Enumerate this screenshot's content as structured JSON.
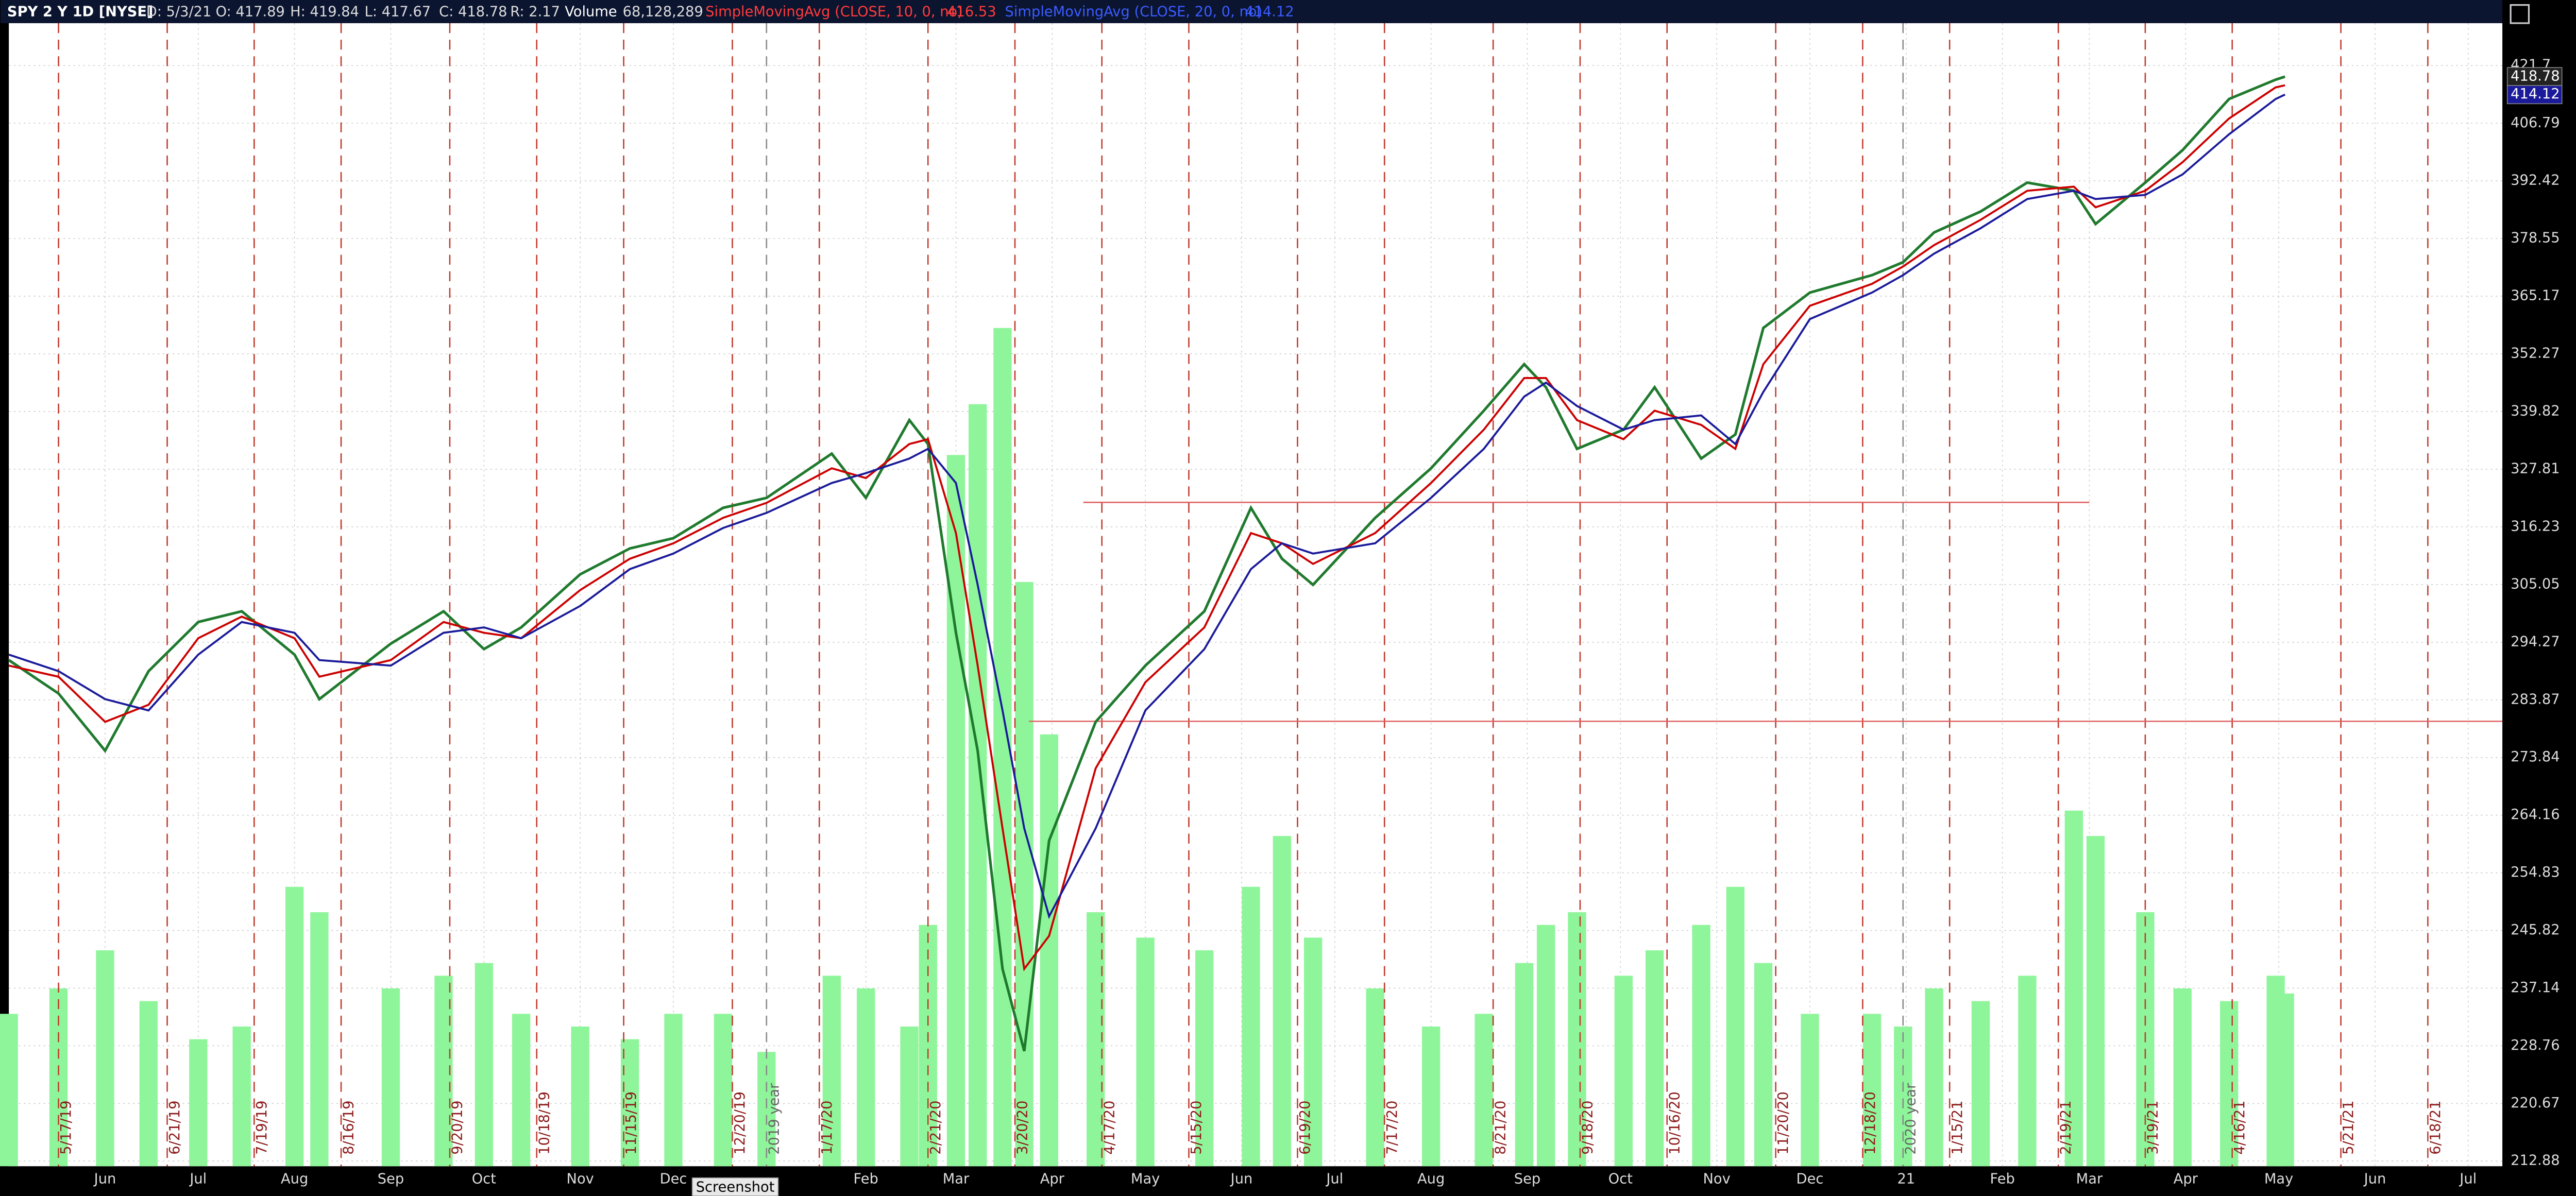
{
  "header": {
    "symbol": "SPY 2 Y 1D [NYSE]",
    "fields": [
      "D: 5/3/21",
      "O: 417.89",
      "H: 419.84",
      "L: 417.67",
      "C: 418.78",
      "R: 2.17"
    ],
    "volume_label": "Volume",
    "volume": "68,128,289"
  },
  "tooltip": "Screenshot",
  "chart_data": {
    "type": "line",
    "ylog": true,
    "grid": true,
    "xlim": [
      0,
      803
    ],
    "ylim": [
      212.2,
      433
    ],
    "yticks": [
      421.7,
      406.79,
      392.42,
      378.55,
      365.17,
      352.27,
      339.82,
      327.81,
      316.23,
      305.05,
      294.27,
      283.87,
      273.84,
      264.16,
      254.83,
      245.82,
      237.14,
      228.76,
      220.67,
      212.88
    ],
    "xticks": [
      {
        "value": 31,
        "label": "Jun"
      },
      {
        "value": 61,
        "label": "Jul"
      },
      {
        "value": 92,
        "label": "Aug"
      },
      {
        "value": 123,
        "label": "Sep"
      },
      {
        "value": 153,
        "label": "Oct"
      },
      {
        "value": 184,
        "label": "Nov"
      },
      {
        "value": 214,
        "label": "Dec"
      },
      {
        "value": 276,
        "label": "Feb"
      },
      {
        "value": 305,
        "label": "Mar"
      },
      {
        "value": 336,
        "label": "Apr"
      },
      {
        "value": 366,
        "label": "May"
      },
      {
        "value": 397,
        "label": "Jun"
      },
      {
        "value": 427,
        "label": "Jul"
      },
      {
        "value": 458,
        "label": "Aug"
      },
      {
        "value": 489,
        "label": "Sep"
      },
      {
        "value": 519,
        "label": "Oct"
      },
      {
        "value": 550,
        "label": "Nov"
      },
      {
        "value": 580,
        "label": "Dec"
      },
      {
        "value": 611,
        "label": "21"
      },
      {
        "value": 642,
        "label": "Feb"
      },
      {
        "value": 670,
        "label": "Mar"
      },
      {
        "value": 701,
        "label": "Apr"
      },
      {
        "value": 731,
        "label": "May"
      },
      {
        "value": 762,
        "label": "Jun"
      },
      {
        "value": 792,
        "label": "Jul"
      }
    ],
    "x": [
      0,
      16,
      31,
      45,
      61,
      75,
      92,
      100,
      123,
      140,
      153,
      165,
      184,
      200,
      214,
      230,
      244,
      265,
      276,
      290,
      296,
      305,
      312,
      320,
      327,
      335,
      350,
      366,
      385,
      400,
      410,
      420,
      440,
      458,
      475,
      488,
      495,
      505,
      520,
      530,
      545,
      556,
      565,
      580,
      600,
      610,
      620,
      635,
      650,
      665,
      672,
      688,
      700,
      715,
      730,
      733
    ],
    "series": [
      {
        "color": "#1f7a2e",
        "values": [
          291,
          285,
          275,
          289,
          298,
          300,
          292,
          284,
          294,
          300,
          293,
          297,
          307,
          312,
          314,
          320,
          322,
          331,
          322,
          338,
          333,
          296,
          275,
          240,
          228,
          260,
          280,
          290,
          300,
          320,
          310,
          305,
          318,
          328,
          340,
          350,
          345,
          332,
          336,
          345,
          330,
          335,
          358,
          366,
          370,
          373,
          380,
          385,
          392,
          390,
          382,
          392,
          400,
          413,
          418,
          418.78
        ]
      },
      {
        "name": "SimpleMovingAvg (CLOSE, 10, 0, no)",
        "color": "#cc0000",
        "values": [
          290,
          288,
          280,
          283,
          295,
          299,
          295,
          288,
          291,
          298,
          296,
          295,
          304,
          310,
          313,
          318,
          321,
          328,
          326,
          333,
          334,
          315,
          290,
          262,
          240,
          245,
          272,
          287,
          297,
          315,
          313,
          309,
          315,
          325,
          336,
          347,
          347,
          338,
          334,
          340,
          337,
          332,
          350,
          363,
          368,
          372,
          377,
          383,
          390,
          391,
          386,
          390,
          397,
          408,
          416,
          416.53
        ]
      },
      {
        "name": "SimpleMovingAvg (CLOSE, 20, 0, no)",
        "color": "#1a1a9a",
        "values": [
          292,
          289,
          284,
          282,
          292,
          298,
          296,
          291,
          290,
          296,
          297,
          295,
          301,
          308,
          311,
          316,
          319,
          325,
          327,
          330,
          332,
          325,
          305,
          282,
          262,
          248,
          262,
          282,
          293,
          308,
          313,
          311,
          313,
          322,
          332,
          343,
          346,
          341,
          336,
          338,
          339,
          333,
          344,
          360,
          366,
          370,
          375,
          381,
          388,
          390,
          388,
          389,
          394,
          404,
          413,
          414.12
        ]
      }
    ],
    "volume": {
      "color": "#8ff59b",
      "ylim": [
        0,
        450
      ],
      "values": [
        60,
        70,
        85,
        65,
        50,
        55,
        110,
        100,
        70,
        75,
        80,
        60,
        55,
        50,
        60,
        60,
        45,
        75,
        70,
        55,
        95,
        280,
        300,
        330,
        230,
        170,
        100,
        90,
        85,
        110,
        130,
        90,
        70,
        55,
        60,
        80,
        95,
        100,
        75,
        85,
        95,
        110,
        80,
        60,
        60,
        55,
        70,
        65,
        75,
        140,
        130,
        100,
        70,
        65,
        75,
        68
      ]
    },
    "events": [
      {
        "x": 16,
        "label": "5/17/19",
        "color": "#c0392b"
      },
      {
        "x": 51,
        "label": "6/21/19",
        "color": "#c0392b"
      },
      {
        "x": 79,
        "label": "7/19/19",
        "color": "#c0392b"
      },
      {
        "x": 107,
        "label": "8/16/19",
        "color": "#c0392b"
      },
      {
        "x": 142,
        "label": "9/20/19",
        "color": "#c0392b"
      },
      {
        "x": 170,
        "label": "10/18/19",
        "color": "#c0392b"
      },
      {
        "x": 198,
        "label": "11/15/19",
        "color": "#c0392b"
      },
      {
        "x": 233,
        "label": "12/20/19",
        "color": "#c0392b"
      },
      {
        "x": 244,
        "label": "2019 year",
        "color": "#888888"
      },
      {
        "x": 261,
        "label": "1/17/20",
        "color": "#c0392b"
      },
      {
        "x": 296,
        "label": "2/21/20",
        "color": "#c0392b"
      },
      {
        "x": 324,
        "label": "3/20/20",
        "color": "#c0392b"
      },
      {
        "x": 352,
        "label": "4/17/20",
        "color": "#c0392b"
      },
      {
        "x": 380,
        "label": "5/15/20",
        "color": "#c0392b"
      },
      {
        "x": 415,
        "label": "6/19/20",
        "color": "#c0392b"
      },
      {
        "x": 443,
        "label": "7/17/20",
        "color": "#c0392b"
      },
      {
        "x": 478,
        "label": "8/21/20",
        "color": "#c0392b"
      },
      {
        "x": 506,
        "label": "9/18/20",
        "color": "#c0392b"
      },
      {
        "x": 534,
        "label": "10/16/20",
        "color": "#c0392b"
      },
      {
        "x": 569,
        "label": "11/20/20",
        "color": "#c0392b"
      },
      {
        "x": 597,
        "label": "12/18/20",
        "color": "#c0392b"
      },
      {
        "x": 610,
        "label": "2020 year",
        "color": "#888888"
      },
      {
        "x": 625,
        "label": "1/15/21",
        "color": "#c0392b"
      },
      {
        "x": 660,
        "label": "2/19/21",
        "color": "#c0392b"
      },
      {
        "x": 688,
        "label": "3/19/21",
        "color": "#c0392b"
      },
      {
        "x": 716,
        "label": "4/16/21",
        "color": "#c0392b"
      },
      {
        "x": 751,
        "label": "5/21/21",
        "color": "#c0392b"
      },
      {
        "x": 779,
        "label": "6/18/21",
        "color": "#c0392b"
      }
    ],
    "levels": [
      {
        "y": 321.1,
        "x": [
          346,
          670
        ],
        "color": "#e06060"
      },
      {
        "y": 280.1,
        "x": [
          328.5,
          803
        ],
        "color": "#e06060"
      }
    ]
  }
}
